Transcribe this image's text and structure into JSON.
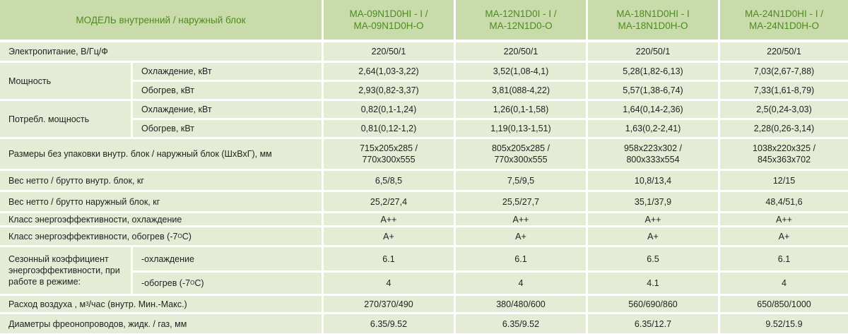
{
  "colors": {
    "header_bg": "#c9dbab",
    "row_bg": "#e4ecd5",
    "header_text": "#4c8c1c"
  },
  "header": {
    "label": "МОДЕЛЬ  внутренний  /  наружный блок",
    "models": [
      {
        "indoor": "MA-09N1D0HI - I /",
        "outdoor": "MA-09N1D0H-O"
      },
      {
        "indoor": "MA-12N1D0I - I /",
        "outdoor": "MA-12N1D0-O"
      },
      {
        "indoor": "MA-18N1D0HI - I",
        "outdoor": "MA-18N1D0H-O"
      },
      {
        "indoor": "MA-24N1D0HI - I /",
        "outdoor": "MA-24N1D0H-O"
      }
    ]
  },
  "rows": {
    "power_supply": {
      "label": "Электропитание, В/Гц/Ф",
      "values": [
        "220/50/1",
        "220/50/1",
        "220/50/1",
        "220/50/1"
      ]
    },
    "capacity": {
      "label": "Мощность",
      "cooling": {
        "label": "Охлаждение, кВт",
        "values": [
          "2,64(1,03-3,22)",
          "3,52(1,08-4,1)",
          "5,28(1,82-6,13)",
          "7,03(2,67-7,88)"
        ]
      },
      "heating": {
        "label": "Обогрев, кВт",
        "values": [
          "2,93(0,82-3,37)",
          "3,81(088-4,22)",
          "5,57(1,38-6,74)",
          "7,33(1,61-8,79)"
        ]
      }
    },
    "consumption": {
      "label": "Потребл. мощность",
      "cooling": {
        "label": "Охлаждение, кВт",
        "values": [
          "0,82(0,1-1,24)",
          "1,26(0,1-1,58)",
          "1,64(0,14-2,36)",
          "2,5(0,24-3,03)"
        ]
      },
      "heating": {
        "label": "Обогрев, кВт",
        "values": [
          "0,81(0,12-1,2)",
          "1,19(0,13-1,51)",
          "1,63(0,2-2,41)",
          "2,28(0,26-3,14)"
        ]
      }
    },
    "dimensions": {
      "label": "Размеры без упаковки внутр. блок / наружный блок  (ШхВхГ), мм",
      "values": [
        {
          "indoor": "715x205x285 /",
          "outdoor": "770x300x555"
        },
        {
          "indoor": "805x205x285 /",
          "outdoor": "770x300x555"
        },
        {
          "indoor": "958x223x302 /",
          "outdoor": "800x333x554"
        },
        {
          "indoor": "1038x220x325 /",
          "outdoor": "845x363x702"
        }
      ]
    },
    "weight_indoor": {
      "label": "Вес нетто / брутто внутр. блок, кг",
      "values": [
        "6,5/8,5",
        "7,5/9,5",
        "10,8/13,4",
        "12/15"
      ]
    },
    "weight_outdoor": {
      "label": "Вес нетто / брутто наружный блок, кг",
      "values": [
        "25,2/27,4",
        "25,5/27,7",
        "35,1/37,9",
        "48,4/51,6"
      ]
    },
    "energy_class_cooling": {
      "label": "Класс энергоэффективности, охлаждение",
      "values": [
        "A++",
        "A++",
        "A++",
        "A++"
      ]
    },
    "energy_class_heating": {
      "label": "Класс энергоэффективности, обогрев (-7",
      "label_sup": "O",
      "label_end": "C)",
      "values": [
        "A+",
        "A+",
        "A+",
        "A+"
      ]
    },
    "seasonal": {
      "label_1": "Сезонный коэффициент",
      "label_2": "энергоэффективности, при",
      "label_3": "работе в режиме:",
      "cooling": {
        "label": "-охлаждение",
        "values": [
          "6.1",
          "6.1",
          "6.5",
          "6.1"
        ]
      },
      "heating": {
        "label": "-обогрев  (-7",
        "label_sup": "O",
        "label_end": "C)",
        "values": [
          "4",
          "4",
          "4.1",
          "4"
        ]
      }
    },
    "airflow": {
      "label": "Расход воздуха , м",
      "label_sup": "3",
      "label_end": "/час (внутр. Мин.-Макс.)",
      "values": [
        "270/370/490",
        "380/480/600",
        "560/690/860",
        "650/850/1000"
      ]
    },
    "pipes": {
      "label": "Диаметры фреонопроводов, жидк. / газ, мм",
      "values": [
        "6.35/9.52",
        "6.35/9.52",
        "6.35/12.7",
        "9.52/15.9"
      ]
    }
  }
}
